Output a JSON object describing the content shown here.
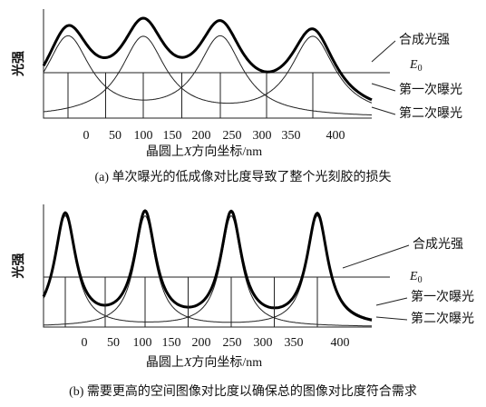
{
  "panels": [
    {
      "y_label": "光强",
      "x_ticks": [
        "0",
        "50",
        "100",
        "150",
        "200",
        "250",
        "300",
        "350",
        "400"
      ],
      "x_label": {
        "before": "晶圆上",
        "italic": "X",
        "after": "方向坐标/nm"
      },
      "legend": {
        "combined": "合成光强",
        "e0": {
          "main": "E",
          "sub": "0"
        },
        "first": "第一次曝光",
        "second": "第二次曝光"
      },
      "caption": "(a) 单次曝光的低成像对比度导致了整个光刻胶的损失"
    },
    {
      "y_label": "光强",
      "x_ticks": [
        "0",
        "50",
        "100",
        "150",
        "200",
        "250",
        "300",
        "350",
        "400"
      ],
      "x_label": {
        "before": "晶圆上",
        "italic": "X",
        "after": "方向坐标/nm"
      },
      "legend": {
        "combined": "合成光强",
        "e0": {
          "main": "E",
          "sub": "0"
        },
        "first": "第一次曝光",
        "second": "第二次曝光"
      },
      "caption": "(b) 需要更高的空间图像对比度以确保总的图像对比度符合需求"
    }
  ]
}
